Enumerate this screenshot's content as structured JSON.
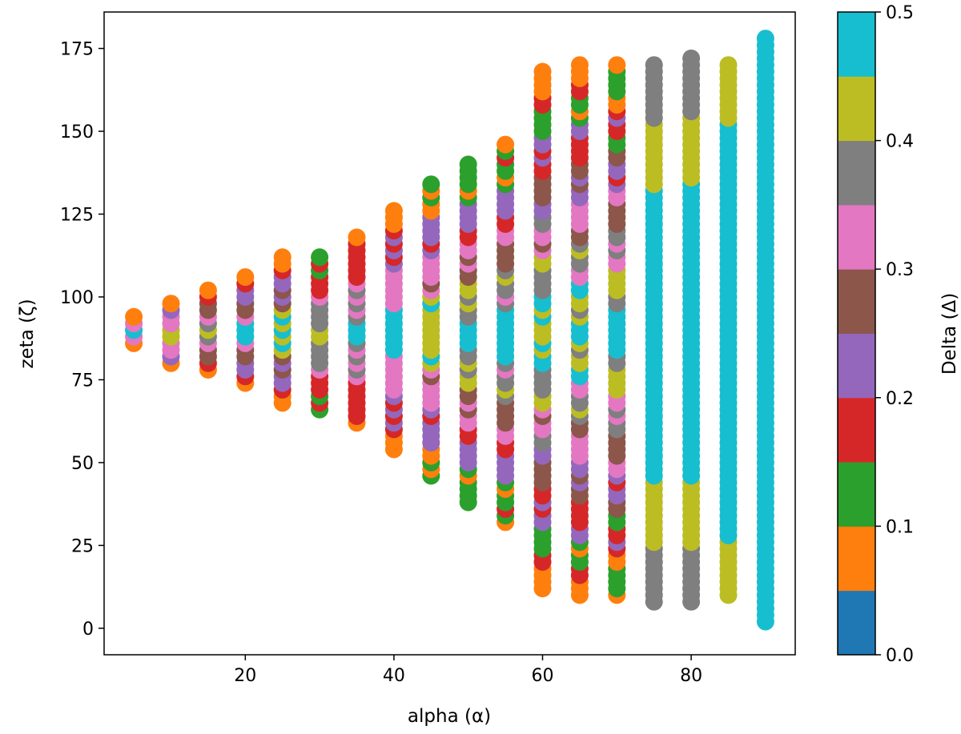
{
  "chart_data": {
    "type": "scatter",
    "title": "",
    "xlabel": "alpha (α)",
    "ylabel": "zeta (ζ)",
    "xlim": [
      1,
      94
    ],
    "ylim": [
      -8,
      186
    ],
    "xticks": [
      20,
      40,
      60,
      80
    ],
    "yticks": [
      0,
      25,
      50,
      75,
      100,
      125,
      150,
      175
    ],
    "grid": false,
    "colorbar": {
      "label": "Delta (Δ)",
      "range": [
        0.0,
        0.5
      ],
      "ticks": [
        "0.0",
        "0.1",
        "0.2",
        "0.3",
        "0.4",
        "0.5"
      ],
      "colors": [
        "#1f77b4",
        "#ff7f0e",
        "#2ca02c",
        "#d62728",
        "#9467bd",
        "#8c564b",
        "#e377c2",
        "#7f7f7f",
        "#bcbd22",
        "#17becf"
      ]
    },
    "series": [
      {
        "alpha": 5,
        "zeta_min": 86,
        "zeta_max": 94
      },
      {
        "alpha": 10,
        "zeta_min": 80,
        "zeta_max": 98
      },
      {
        "alpha": 15,
        "zeta_min": 78,
        "zeta_max": 102
      },
      {
        "alpha": 20,
        "zeta_min": 74,
        "zeta_max": 106
      },
      {
        "alpha": 25,
        "zeta_min": 68,
        "zeta_max": 112
      },
      {
        "alpha": 30,
        "zeta_min": 66,
        "zeta_max": 112
      },
      {
        "alpha": 35,
        "zeta_min": 62,
        "zeta_max": 118
      },
      {
        "alpha": 40,
        "zeta_min": 54,
        "zeta_max": 126
      },
      {
        "alpha": 45,
        "zeta_min": 46,
        "zeta_max": 134
      },
      {
        "alpha": 50,
        "zeta_min": 38,
        "zeta_max": 140
      },
      {
        "alpha": 55,
        "zeta_min": 32,
        "zeta_max": 146
      },
      {
        "alpha": 60,
        "zeta_min": 12,
        "zeta_max": 168
      },
      {
        "alpha": 65,
        "zeta_min": 10,
        "zeta_max": 170
      },
      {
        "alpha": 70,
        "zeta_min": 10,
        "zeta_max": 170
      },
      {
        "alpha": 75,
        "zeta_min": 8,
        "zeta_max": 170
      },
      {
        "alpha": 80,
        "zeta_min": 8,
        "zeta_max": 172
      },
      {
        "alpha": 85,
        "zeta_min": 10,
        "zeta_max": 170
      },
      {
        "alpha": 90,
        "zeta_min": 2,
        "zeta_max": 178
      }
    ]
  }
}
